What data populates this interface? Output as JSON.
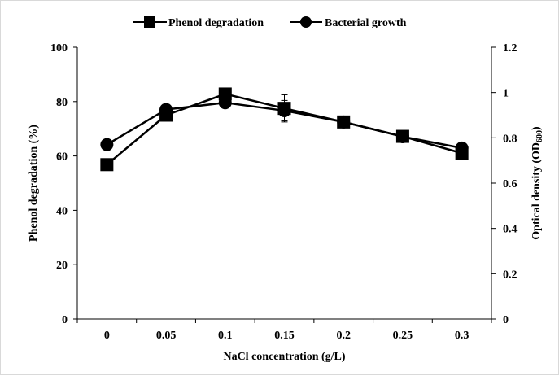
{
  "chart_data": {
    "type": "line",
    "categories": [
      "0",
      "0.05",
      "0.1",
      "0.15",
      "0.2",
      "0.25",
      "0.3"
    ],
    "xlabel": "NaCl concentration (g/L)",
    "ylabel_left": "Phenol degradation (%)",
    "ylabel_right": {
      "main": "Optical density (OD",
      "subscript": "600",
      "close": ")"
    },
    "ylim_left": [
      0,
      100
    ],
    "ylim_right": [
      0,
      1.2
    ],
    "yticks_left": [
      "0",
      "20",
      "40",
      "60",
      "80",
      "100"
    ],
    "yticks_right": [
      "0",
      "0.2",
      "0.4",
      "0.6",
      "0.8",
      "1",
      "1.2"
    ],
    "grid": false,
    "legend_position": "top",
    "series": [
      {
        "name": "Phenol degradation",
        "axis": "left",
        "marker": "square",
        "values": [
          56.8,
          75.0,
          82.8,
          77.5,
          72.5,
          67.2,
          61.0
        ],
        "error": [
          0,
          1.0,
          0.8,
          5.0,
          1.2,
          0.5,
          0.5
        ]
      },
      {
        "name": "Bacterial growth",
        "axis": "right",
        "marker": "circle",
        "values": [
          0.77,
          0.925,
          0.955,
          0.92,
          0.87,
          0.805,
          0.755
        ],
        "error": [
          0,
          0.01,
          0.01,
          0.045,
          0.015,
          0.01,
          0.01
        ]
      }
    ],
    "colors": {
      "line": "#000000",
      "axis": "#000000",
      "background": "#ffffff"
    }
  }
}
